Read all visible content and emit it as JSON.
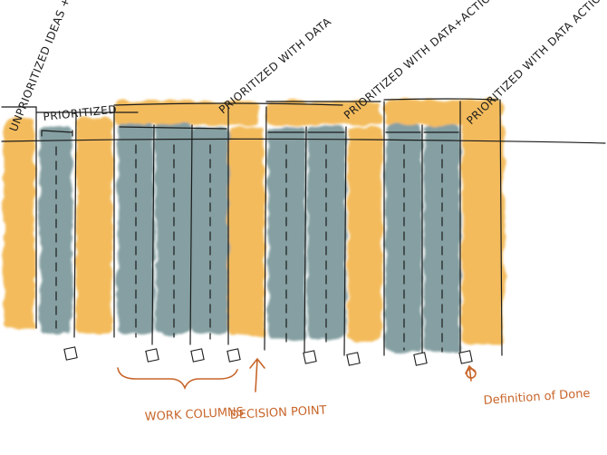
{
  "labels": {
    "unprioritized": "UNPRIORITIZED IDEAS + HYPOS",
    "prioritized": "PRIORITIZED",
    "prioritized_with_data": "PRIORITIZED WITH DATA",
    "prioritized_with_data_actions": "PRIORITIZED WITH DATA+ACTIONS",
    "prioritized_with_data_actions_plan": "PRIORITIZED WITH DATA ACTIONS & PLAN",
    "work_columns": "WORK COLUMNS",
    "decision_point": "DECISION POINT",
    "definition_of_done": "Definition of Done"
  },
  "colors": {
    "queue_column": "#f1b040",
    "work_column": "#6f8f92",
    "annotation": "#c8652a",
    "ink": "#1b1b1b"
  }
}
